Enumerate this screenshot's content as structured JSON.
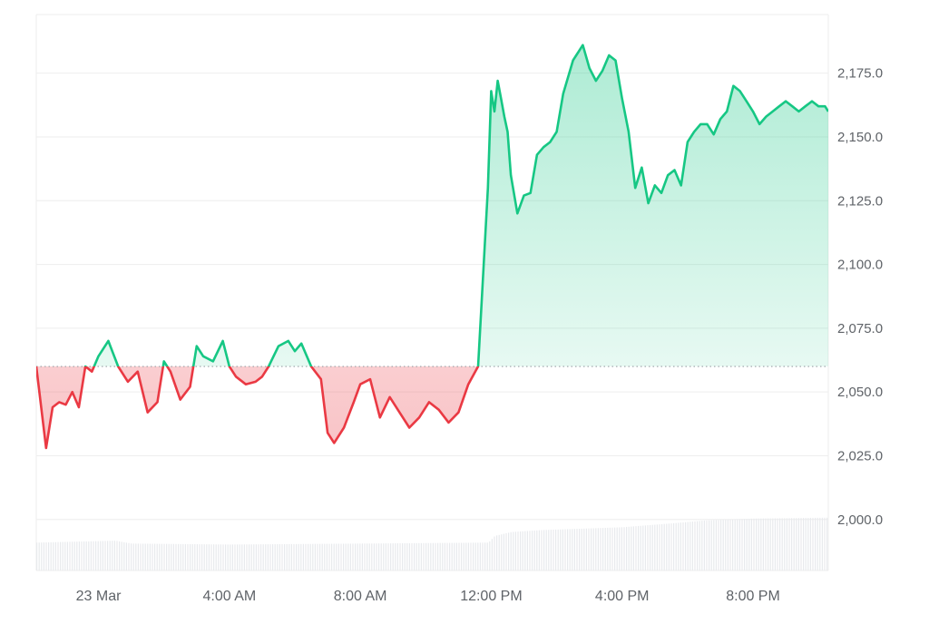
{
  "chart_data": {
    "type": "area",
    "baseline": 2060,
    "ylim": [
      1980,
      2198
    ],
    "yticks": [
      2000,
      2025,
      2050,
      2075,
      2100,
      2125,
      2150,
      2175
    ],
    "ytick_labels": [
      "2,000.0",
      "2,025.0",
      "2,050.0",
      "2,075.0",
      "2,100.0",
      "2,125.0",
      "2,150.0",
      "2,175.0"
    ],
    "x_range_hours": [
      -1.9,
      22.3
    ],
    "xticks": [
      0,
      4,
      8,
      12,
      16,
      20
    ],
    "xtick_labels": [
      "23 Mar",
      "4:00 AM",
      "8:00 AM",
      "12:00 PM",
      "4:00 PM",
      "8:00 PM"
    ],
    "colors": {
      "above": "#16c784",
      "below": "#ea3943",
      "above_fill": "#16c784",
      "below_fill": "#ea3943",
      "grid": "#eeeeee",
      "baseline": "#9aa0a6",
      "volume": "#e8eaed"
    },
    "grid": true,
    "price_series": {
      "x": [
        -1.9,
        -1.6,
        -1.4,
        -1.2,
        -1.0,
        -0.8,
        -0.6,
        -0.4,
        -0.2,
        0.0,
        0.3,
        0.6,
        0.9,
        1.2,
        1.5,
        1.8,
        2.0,
        2.2,
        2.5,
        2.8,
        3.0,
        3.2,
        3.5,
        3.8,
        4.0,
        4.2,
        4.5,
        4.8,
        5.0,
        5.2,
        5.5,
        5.8,
        6.0,
        6.2,
        6.5,
        6.8,
        7.0,
        7.2,
        7.5,
        7.8,
        8.0,
        8.3,
        8.6,
        8.9,
        9.2,
        9.5,
        9.8,
        10.1,
        10.4,
        10.7,
        11.0,
        11.3,
        11.6,
        11.9,
        12.0,
        12.1,
        12.2,
        12.3,
        12.4,
        12.5,
        12.6,
        12.8,
        13.0,
        13.2,
        13.4,
        13.6,
        13.8,
        14.0,
        14.2,
        14.5,
        14.8,
        15.0,
        15.2,
        15.4,
        15.6,
        15.8,
        16.0,
        16.2,
        16.4,
        16.6,
        16.8,
        17.0,
        17.2,
        17.4,
        17.6,
        17.8,
        18.0,
        18.2,
        18.4,
        18.6,
        18.8,
        19.0,
        19.2,
        19.4,
        19.6,
        19.8,
        20.0,
        20.2,
        20.4,
        20.6,
        20.8,
        21.0,
        21.2,
        21.4,
        21.6,
        21.8,
        22.0,
        22.2,
        22.3
      ],
      "y": [
        2060,
        2028,
        2044,
        2046,
        2045,
        2050,
        2044,
        2060,
        2058,
        2064,
        2070,
        2060,
        2054,
        2058,
        2042,
        2046,
        2062,
        2058,
        2047,
        2052,
        2068,
        2064,
        2062,
        2070,
        2060,
        2056,
        2053,
        2054,
        2056,
        2060,
        2068,
        2070,
        2066,
        2069,
        2060,
        2055,
        2034,
        2030,
        2036,
        2046,
        2053,
        2055,
        2040,
        2048,
        2042,
        2036,
        2040,
        2046,
        2043,
        2038,
        2042,
        2053,
        2060,
        2130,
        2168,
        2160,
        2172,
        2165,
        2158,
        2152,
        2135,
        2120,
        2127,
        2128,
        2143,
        2146,
        2148,
        2152,
        2167,
        2180,
        2186,
        2177,
        2172,
        2176,
        2182,
        2180,
        2165,
        2152,
        2130,
        2138,
        2124,
        2131,
        2128,
        2135,
        2137,
        2131,
        2148,
        2152,
        2155,
        2155,
        2151,
        2157,
        2160,
        2170,
        2168,
        2164,
        2160,
        2155,
        2158,
        2160,
        2162,
        2164,
        2162,
        2160,
        2162,
        2164,
        2162,
        2162,
        2160
      ]
    },
    "volume_series": {
      "x": [
        -1.9,
        0.5,
        1.0,
        4.0,
        8.0,
        11.9,
        12.1,
        12.6,
        13.5,
        16.0,
        17.5,
        18.5,
        20.0,
        22.3
      ],
      "level": [
        0.29,
        0.31,
        0.28,
        0.27,
        0.28,
        0.29,
        0.36,
        0.4,
        0.42,
        0.45,
        0.49,
        0.52,
        0.54,
        0.55
      ]
    }
  }
}
